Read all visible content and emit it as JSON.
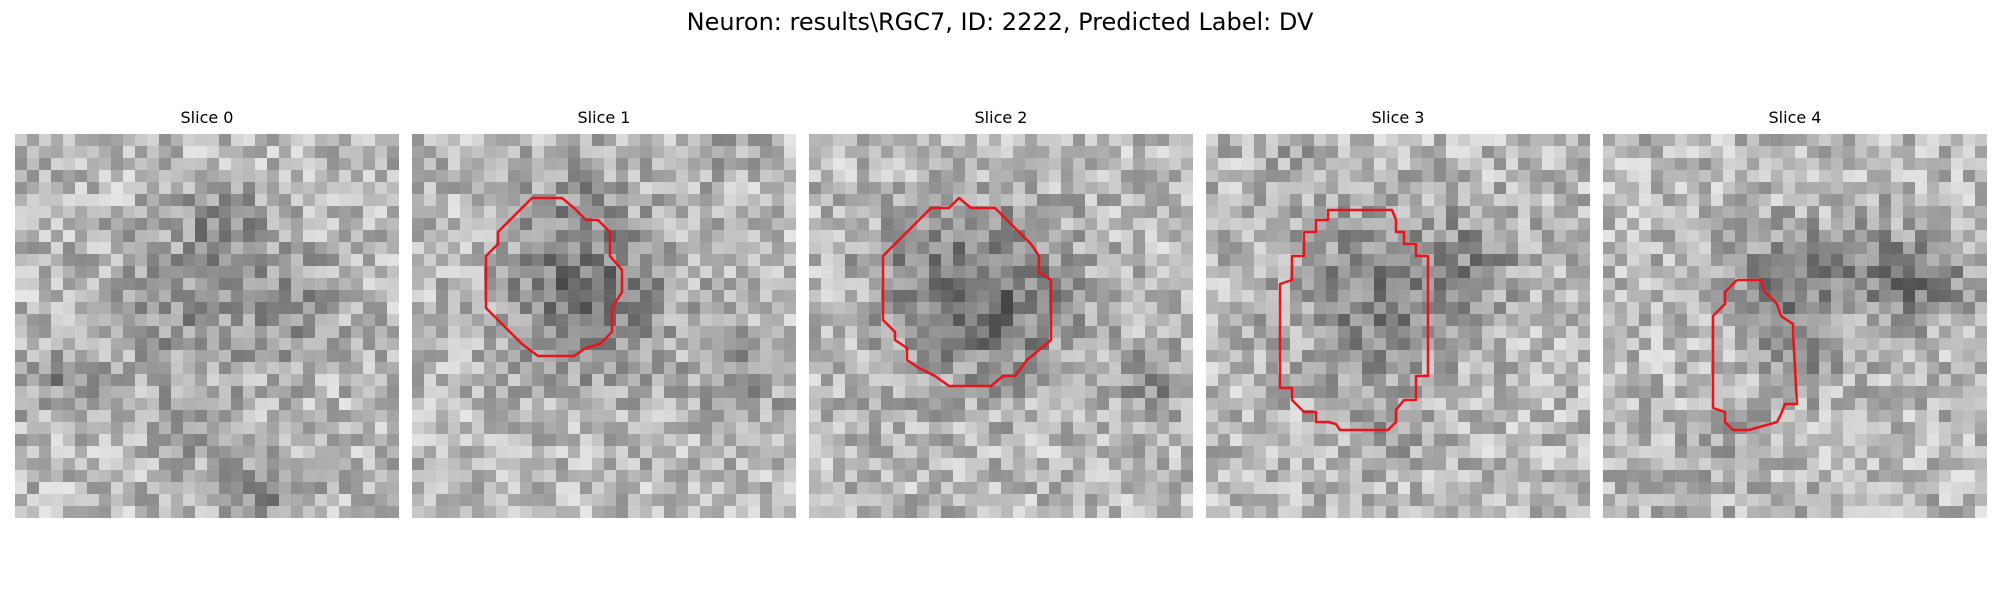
{
  "figure": {
    "title": "Neuron: results\\RGC7, ID: 2222, Predicted Label: DV"
  },
  "contour_color": "#e8141c",
  "slices": [
    {
      "label": "Slice 0",
      "has_contour": false
    },
    {
      "label": "Slice 1",
      "has_contour": true
    },
    {
      "label": "Slice 2",
      "has_contour": true
    },
    {
      "label": "Slice 3",
      "has_contour": true
    },
    {
      "label": "Slice 4",
      "has_contour": true
    }
  ]
}
